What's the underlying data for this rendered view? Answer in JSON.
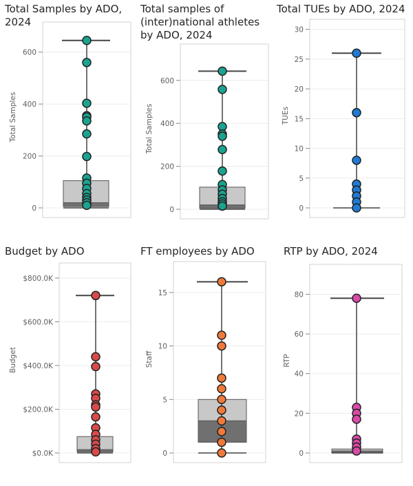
{
  "chart_data": [
    {
      "type": "box",
      "title": "Total Samples by ADO,\n2024",
      "ylabel": "Total Samples",
      "ylim": [
        0,
        700
      ],
      "yticks": [
        0,
        200,
        400,
        600
      ],
      "tick_labels": [
        "0",
        "200",
        "400",
        "600"
      ],
      "points": [
        645,
        560,
        403,
        355,
        350,
        335,
        285,
        198,
        115,
        95,
        75,
        55,
        40,
        30,
        20,
        10
      ],
      "whisker_min": 0,
      "whisker_max": 645,
      "q1": 5,
      "median": 20,
      "q3": 105,
      "color": "#1aa38f"
    },
    {
      "type": "box",
      "title": "Total samples of\n(inter)national athletes\nby ADO, 2024",
      "ylabel": "Total Samples",
      "ylim": [
        0,
        750
      ],
      "yticks": [
        0,
        200,
        400,
        600
      ],
      "tick_labels": [
        "0",
        "200",
        "400",
        "600"
      ],
      "points": [
        643,
        558,
        385,
        350,
        340,
        278,
        178,
        115,
        90,
        70,
        50,
        35,
        25,
        15
      ],
      "whisker_min": 0,
      "whisker_max": 643,
      "q1": 5,
      "median": 20,
      "q3": 103,
      "color": "#1aa38f"
    },
    {
      "type": "box",
      "title": "Total TUEs by ADO, 2024",
      "ylabel": "TUEs",
      "ylim": [
        0,
        31
      ],
      "yticks": [
        0,
        5,
        10,
        15,
        20,
        25,
        30
      ],
      "tick_labels": [
        "0",
        "5",
        "10",
        "15",
        "20",
        "25",
        "30"
      ],
      "points": [
        26,
        16,
        8,
        4,
        3,
        2,
        1,
        0
      ],
      "whisker_min": 0,
      "whisker_max": 26,
      "q1": 0,
      "median": 0,
      "q3": 0,
      "color": "#1f7ad4"
    },
    {
      "type": "box",
      "title": "Budget by ADO",
      "ylabel": "Budget",
      "ylim": [
        0,
        850000
      ],
      "yticks": [
        0,
        200000,
        400000,
        600000,
        800000
      ],
      "tick_labels": [
        "$0.0K",
        "$200.0K",
        "$400.0K",
        "$600.0K",
        "$800.0K"
      ],
      "points": [
        720000,
        440000,
        395000,
        270000,
        250000,
        220000,
        210000,
        165000,
        115000,
        85000,
        60000,
        40000,
        20000,
        5000
      ],
      "whisker_min": 0,
      "whisker_max": 720000,
      "q1": 5000,
      "median": 15000,
      "q3": 75000,
      "color": "#d94a4a"
    },
    {
      "type": "box",
      "title": "FT employees by ADO",
      "ylabel": "Staff",
      "ylim": [
        0,
        17.5
      ],
      "yticks": [
        0,
        5,
        10,
        15
      ],
      "tick_labels": [
        "0",
        "5",
        "10",
        "15"
      ],
      "points": [
        16,
        11,
        10,
        7,
        6,
        5,
        4,
        3,
        2,
        1,
        0
      ],
      "whisker_min": 0,
      "whisker_max": 16,
      "q1": 1,
      "median": 3,
      "q3": 5,
      "color": "#f07a3a"
    },
    {
      "type": "box",
      "title": "RTP by ADO, 2024",
      "ylabel": "RTP",
      "ylim": [
        0,
        93
      ],
      "yticks": [
        0,
        20,
        40,
        60,
        80
      ],
      "tick_labels": [
        "0",
        "20",
        "40",
        "60",
        "80"
      ],
      "points": [
        78,
        23,
        20,
        17,
        7,
        5,
        3,
        1
      ],
      "whisker_min": 0,
      "whisker_max": 78,
      "q1": 0,
      "median": 1,
      "q3": 2,
      "color": "#d94aa8"
    }
  ]
}
